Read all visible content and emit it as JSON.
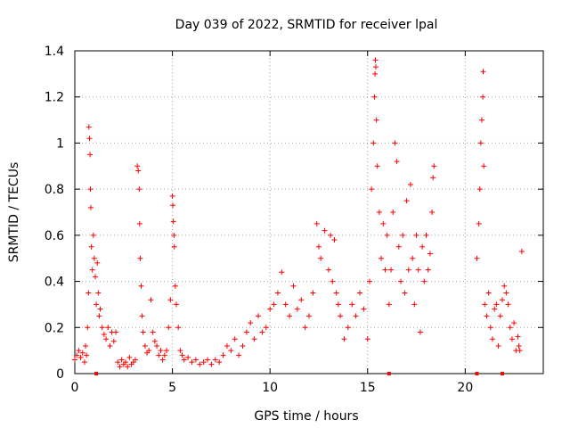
{
  "chart_data": {
    "type": "scatter",
    "title": "Day 039 of 2022, SRMTID for receiver lpal",
    "xlabel": "GPS time / hours",
    "ylabel": "SRMTID / TECUs",
    "xlim": [
      0,
      24
    ],
    "ylim": [
      0,
      1.4
    ],
    "xticks": [
      0,
      5,
      10,
      15,
      20
    ],
    "xtick_labels": [
      "0",
      "5",
      "10",
      "15",
      "20"
    ],
    "yticks": [
      0,
      0.2,
      0.4,
      0.6,
      0.8,
      1,
      1.2,
      1.4
    ],
    "ytick_labels": [
      "0",
      "0.2",
      "0.4",
      "0.6",
      "0.8",
      "1",
      "1.2",
      "1.4"
    ],
    "grid": true,
    "marker": "+",
    "series": [
      {
        "name": "SRMTID",
        "color": "#ff0000",
        "points": [
          [
            0.0,
            0.06
          ],
          [
            0.1,
            0.08
          ],
          [
            0.2,
            0.1
          ],
          [
            0.3,
            0.07
          ],
          [
            0.4,
            0.09
          ],
          [
            0.5,
            0.05
          ],
          [
            0.55,
            0.12
          ],
          [
            0.6,
            0.08
          ],
          [
            0.65,
            0.2
          ],
          [
            0.7,
            0.35
          ],
          [
            0.72,
            1.07
          ],
          [
            0.75,
            1.02
          ],
          [
            0.78,
            0.95
          ],
          [
            0.8,
            0.8
          ],
          [
            0.82,
            0.72
          ],
          [
            0.85,
            0.55
          ],
          [
            0.9,
            0.45
          ],
          [
            0.95,
            0.6
          ],
          [
            1.0,
            0.5
          ],
          [
            1.05,
            0.42
          ],
          [
            1.1,
            0.3
          ],
          [
            1.15,
            0.48
          ],
          [
            1.2,
            0.35
          ],
          [
            1.25,
            0.25
          ],
          [
            1.3,
            0.28
          ],
          [
            1.4,
            0.2
          ],
          [
            1.5,
            0.17
          ],
          [
            1.6,
            0.15
          ],
          [
            1.7,
            0.2
          ],
          [
            1.8,
            0.12
          ],
          [
            1.9,
            0.18
          ],
          [
            2.0,
            0.14
          ],
          [
            2.1,
            0.18
          ],
          [
            2.2,
            0.05
          ],
          [
            2.3,
            0.03
          ],
          [
            2.4,
            0.06
          ],
          [
            2.5,
            0.04
          ],
          [
            2.6,
            0.05
          ],
          [
            2.7,
            0.03
          ],
          [
            2.8,
            0.07
          ],
          [
            2.9,
            0.04
          ],
          [
            3.0,
            0.05
          ],
          [
            3.1,
            0.06
          ],
          [
            3.2,
            0.9
          ],
          [
            3.25,
            0.88
          ],
          [
            3.3,
            0.8
          ],
          [
            3.32,
            0.65
          ],
          [
            3.35,
            0.5
          ],
          [
            3.4,
            0.38
          ],
          [
            3.45,
            0.25
          ],
          [
            3.5,
            0.18
          ],
          [
            3.6,
            0.12
          ],
          [
            3.7,
            0.09
          ],
          [
            3.8,
            0.1
          ],
          [
            3.9,
            0.32
          ],
          [
            4.0,
            0.18
          ],
          [
            4.1,
            0.14
          ],
          [
            4.2,
            0.12
          ],
          [
            4.3,
            0.08
          ],
          [
            4.4,
            0.1
          ],
          [
            4.5,
            0.06
          ],
          [
            4.6,
            0.08
          ],
          [
            4.7,
            0.1
          ],
          [
            4.8,
            0.2
          ],
          [
            4.9,
            0.32
          ],
          [
            5.0,
            0.77
          ],
          [
            5.02,
            0.73
          ],
          [
            5.05,
            0.66
          ],
          [
            5.08,
            0.6
          ],
          [
            5.1,
            0.55
          ],
          [
            5.15,
            0.38
          ],
          [
            5.2,
            0.3
          ],
          [
            5.3,
            0.2
          ],
          [
            5.4,
            0.1
          ],
          [
            5.5,
            0.08
          ],
          [
            5.6,
            0.06
          ],
          [
            5.8,
            0.07
          ],
          [
            6.0,
            0.05
          ],
          [
            6.2,
            0.06
          ],
          [
            6.4,
            0.04
          ],
          [
            6.6,
            0.05
          ],
          [
            6.8,
            0.06
          ],
          [
            7.0,
            0.04
          ],
          [
            7.2,
            0.06
          ],
          [
            7.4,
            0.05
          ],
          [
            7.6,
            0.08
          ],
          [
            7.8,
            0.12
          ],
          [
            8.0,
            0.1
          ],
          [
            8.2,
            0.15
          ],
          [
            8.4,
            0.08
          ],
          [
            8.6,
            0.12
          ],
          [
            8.8,
            0.18
          ],
          [
            9.0,
            0.22
          ],
          [
            9.2,
            0.15
          ],
          [
            9.4,
            0.25
          ],
          [
            9.6,
            0.18
          ],
          [
            9.8,
            0.2
          ],
          [
            10.0,
            0.28
          ],
          [
            10.2,
            0.3
          ],
          [
            10.4,
            0.35
          ],
          [
            10.6,
            0.44
          ],
          [
            10.8,
            0.3
          ],
          [
            11.0,
            0.25
          ],
          [
            11.2,
            0.38
          ],
          [
            11.4,
            0.28
          ],
          [
            11.6,
            0.32
          ],
          [
            11.8,
            0.2
          ],
          [
            12.0,
            0.25
          ],
          [
            12.2,
            0.35
          ],
          [
            12.4,
            0.65
          ],
          [
            12.5,
            0.55
          ],
          [
            12.6,
            0.5
          ],
          [
            12.8,
            0.62
          ],
          [
            13.0,
            0.45
          ],
          [
            13.1,
            0.6
          ],
          [
            13.2,
            0.4
          ],
          [
            13.3,
            0.58
          ],
          [
            13.4,
            0.35
          ],
          [
            13.5,
            0.3
          ],
          [
            13.6,
            0.25
          ],
          [
            13.8,
            0.15
          ],
          [
            14.0,
            0.2
          ],
          [
            14.2,
            0.3
          ],
          [
            14.4,
            0.25
          ],
          [
            14.6,
            0.35
          ],
          [
            14.8,
            0.28
          ],
          [
            15.0,
            0.15
          ],
          [
            15.1,
            0.4
          ],
          [
            15.2,
            0.8
          ],
          [
            15.3,
            1.0
          ],
          [
            15.35,
            1.2
          ],
          [
            15.38,
            1.3
          ],
          [
            15.4,
            1.36
          ],
          [
            15.42,
            1.33
          ],
          [
            15.45,
            1.1
          ],
          [
            15.5,
            0.9
          ],
          [
            15.6,
            0.7
          ],
          [
            15.7,
            0.5
          ],
          [
            15.8,
            0.65
          ],
          [
            15.9,
            0.45
          ],
          [
            16.0,
            0.6
          ],
          [
            16.1,
            0.3
          ],
          [
            16.2,
            0.45
          ],
          [
            16.3,
            0.7
          ],
          [
            16.4,
            1.0
          ],
          [
            16.5,
            0.92
          ],
          [
            16.6,
            0.55
          ],
          [
            16.7,
            0.4
          ],
          [
            16.8,
            0.6
          ],
          [
            16.9,
            0.35
          ],
          [
            17.0,
            0.75
          ],
          [
            17.1,
            0.45
          ],
          [
            17.2,
            0.82
          ],
          [
            17.3,
            0.5
          ],
          [
            17.4,
            0.3
          ],
          [
            17.5,
            0.6
          ],
          [
            17.6,
            0.45
          ],
          [
            17.7,
            0.18
          ],
          [
            17.8,
            0.55
          ],
          [
            17.9,
            0.4
          ],
          [
            18.0,
            0.6
          ],
          [
            18.1,
            0.45
          ],
          [
            18.2,
            0.52
          ],
          [
            18.3,
            0.7
          ],
          [
            18.35,
            0.85
          ],
          [
            18.4,
            0.9
          ],
          [
            20.6,
            0.5
          ],
          [
            20.7,
            0.65
          ],
          [
            20.75,
            0.8
          ],
          [
            20.8,
            1.0
          ],
          [
            20.85,
            1.1
          ],
          [
            20.9,
            1.2
          ],
          [
            20.92,
            1.31
          ],
          [
            20.95,
            0.9
          ],
          [
            21.0,
            0.3
          ],
          [
            21.1,
            0.25
          ],
          [
            21.2,
            0.35
          ],
          [
            21.3,
            0.2
          ],
          [
            21.4,
            0.15
          ],
          [
            21.5,
            0.28
          ],
          [
            21.6,
            0.3
          ],
          [
            21.7,
            0.12
          ],
          [
            21.8,
            0.25
          ],
          [
            21.9,
            0.32
          ],
          [
            22.0,
            0.38
          ],
          [
            22.1,
            0.35
          ],
          [
            22.2,
            0.3
          ],
          [
            22.3,
            0.2
          ],
          [
            22.4,
            0.15
          ],
          [
            22.5,
            0.22
          ],
          [
            22.6,
            0.1
          ],
          [
            22.7,
            0.16
          ],
          [
            22.75,
            0.12
          ],
          [
            22.8,
            0.1
          ],
          [
            22.9,
            0.53
          ],
          [
            1.1,
            0.0
          ],
          [
            16.1,
            0.0
          ],
          [
            20.6,
            0.0
          ],
          [
            21.9,
            0.0
          ]
        ]
      }
    ]
  }
}
